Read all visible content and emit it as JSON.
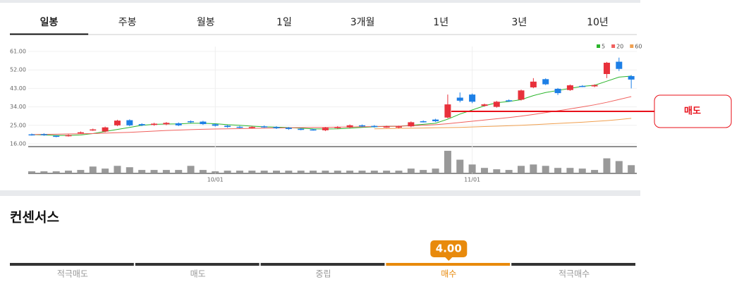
{
  "tabs": [
    "일봉",
    "주봉",
    "월봉",
    "1일",
    "3개월",
    "1년",
    "3년",
    "10년"
  ],
  "chart_data": {
    "type": "candlestick",
    "categories": [
      null,
      null,
      null,
      null,
      null,
      null,
      null,
      null,
      null,
      null,
      null,
      null,
      null,
      null,
      null,
      "10/01",
      null,
      null,
      null,
      null,
      null,
      null,
      null,
      null,
      null,
      null,
      null,
      null,
      null,
      null,
      null,
      null,
      null,
      null,
      null,
      null,
      "11/01",
      null,
      null,
      null,
      null,
      null,
      null,
      null,
      null,
      null,
      null,
      null,
      null,
      null
    ],
    "open": [
      20.6,
      20.7,
      19.9,
      19.9,
      21.3,
      22.7,
      22.0,
      25.0,
      27.5,
      25.6,
      25.2,
      25.5,
      26.0,
      27.0,
      26.8,
      25.5,
      24.8,
      24.3,
      23.8,
      24.5,
      24.2,
      23.8,
      23.3,
      23.0,
      22.6,
      23.8,
      24.0,
      25.0,
      24.7,
      24.2,
      24.0,
      24.5,
      27.0,
      27.8,
      28.8,
      38.5,
      40.0,
      34.5,
      34.0,
      37.2,
      37.5,
      43.5,
      47.5,
      42.8,
      42.2,
      44.2,
      44.0,
      50.0,
      56.0,
      49.0
    ],
    "high": [
      21.0,
      21.1,
      20.3,
      20.6,
      22.0,
      23.4,
      24.4,
      27.7,
      27.9,
      26.0,
      26.2,
      26.6,
      26.4,
      27.4,
      27.2,
      25.9,
      25.2,
      24.7,
      24.6,
      24.9,
      24.6,
      24.2,
      23.7,
      23.4,
      24.2,
      24.6,
      25.4,
      25.4,
      25.1,
      24.8,
      24.8,
      26.9,
      27.4,
      28.2,
      40.0,
      41.0,
      40.5,
      35.6,
      36.9,
      37.6,
      42.4,
      48.0,
      47.9,
      43.2,
      44.9,
      44.6,
      45.0,
      55.9,
      58.0,
      49.5
    ],
    "low": [
      20.0,
      19.9,
      19.2,
      19.5,
      20.9,
      22.3,
      21.6,
      24.6,
      24.6,
      24.6,
      24.8,
      25.1,
      24.6,
      26.1,
      25.2,
      24.4,
      23.8,
      23.6,
      23.4,
      23.8,
      23.2,
      22.8,
      22.6,
      22.4,
      22.2,
      23.4,
      23.6,
      24.2,
      23.9,
      23.8,
      23.6,
      24.1,
      26.4,
      26.6,
      28.4,
      36.2,
      35.8,
      34.1,
      33.6,
      36.4,
      37.1,
      43.1,
      44.6,
      39.8,
      41.8,
      43.6,
      43.6,
      48.0,
      51.5,
      43.0
    ],
    "close": [
      20.4,
      20.3,
      19.6,
      20.2,
      21.6,
      23.0,
      24.0,
      27.3,
      25.0,
      25.0,
      25.8,
      26.2,
      25.0,
      26.5,
      25.6,
      24.8,
      24.2,
      24.0,
      24.2,
      24.2,
      23.6,
      23.2,
      23.0,
      22.8,
      23.8,
      24.2,
      25.0,
      24.6,
      24.3,
      24.4,
      24.4,
      26.5,
      26.8,
      27.0,
      35.2,
      37.0,
      36.5,
      35.2,
      36.5,
      36.8,
      42.0,
      46.3,
      45.0,
      40.7,
      44.5,
      44.0,
      44.6,
      55.5,
      52.5,
      47.3
    ],
    "up_color": "#e8313b",
    "down_color": "#1d7fe6",
    "series": [
      {
        "name": "5",
        "color": "#2bb52b",
        "values": [
          20.5,
          20.3,
          20.1,
          20.1,
          20.3,
          21,
          22,
          23,
          24,
          25,
          25.5,
          25.6,
          25.7,
          26,
          26,
          25.8,
          25.3,
          25,
          24.6,
          24.3,
          24.1,
          23.9,
          23.6,
          23.3,
          23.2,
          23.3,
          23.6,
          24,
          24.3,
          24.5,
          24.5,
          25,
          25.5,
          26,
          28,
          30.5,
          32.5,
          34.5,
          36,
          36.6,
          37.5,
          39.5,
          41,
          42,
          43,
          44,
          44.5,
          46.5,
          48.5,
          49
        ]
      },
      {
        "name": "20",
        "color": "#f0605d",
        "values": [
          20.5,
          20.6,
          20.7,
          20.8,
          20.9,
          21.0,
          21.2,
          21.4,
          21.6,
          21.9,
          22.2,
          22.5,
          22.7,
          22.9,
          23.1,
          23.2,
          23.3,
          23.4,
          23.5,
          23.6,
          23.7,
          23.8,
          23.9,
          24.0,
          24.0,
          24.1,
          24.2,
          24.3,
          24.4,
          24.5,
          24.6,
          24.8,
          25.0,
          25.3,
          25.8,
          26.4,
          27.0,
          27.6,
          28.2,
          28.8,
          29.5,
          30.3,
          31.2,
          32.1,
          33.0,
          34.0,
          35.0,
          36.2,
          37.6,
          39.0
        ]
      },
      {
        "name": "60",
        "color": "#f0a050",
        "values": [
          null,
          null,
          null,
          null,
          null,
          null,
          null,
          null,
          null,
          null,
          null,
          null,
          null,
          null,
          null,
          null,
          null,
          null,
          null,
          null,
          null,
          null,
          null,
          null,
          null,
          null,
          null,
          null,
          23.3,
          23.4,
          23.5,
          23.6,
          23.7,
          23.8,
          23.9,
          24.0,
          24.2,
          24.4,
          24.6,
          24.8,
          25.0,
          25.3,
          25.6,
          25.9,
          26.2,
          26.5,
          26.9,
          27.3,
          27.8,
          28.4
        ]
      }
    ],
    "volume": [
      2,
      2,
      2,
      3,
      4,
      9,
      6,
      10,
      8,
      4,
      4,
      4,
      4,
      10,
      4,
      2,
      3,
      3,
      3,
      3,
      3,
      3,
      3,
      3,
      3,
      3,
      3,
      3,
      3,
      3,
      3,
      6,
      4,
      6,
      32,
      19,
      12,
      7,
      5,
      4,
      10,
      12,
      10,
      7,
      7,
      6,
      4,
      21,
      17,
      11
    ],
    "volume_color": "#999999",
    "volume_lim": [
      0,
      34
    ],
    "ylim": [
      16,
      61
    ],
    "yticks": [
      {
        "value": 16,
        "label": "16.00"
      },
      {
        "value": 25,
        "label": "25.00"
      },
      {
        "value": 34,
        "label": "34.00"
      },
      {
        "value": 43,
        "label": "43.00"
      },
      {
        "value": 52,
        "label": "52.00"
      },
      {
        "value": 61,
        "label": "61.00"
      }
    ],
    "grid": true,
    "legend": "top-right",
    "annotation": {
      "label": "매도",
      "value": 31.8,
      "color": "#e8101a"
    }
  },
  "consensus": {
    "title": "컨센서스",
    "score": "4.00",
    "levels": [
      "적극매도",
      "매도",
      "중립",
      "매수",
      "적극매수"
    ],
    "active": 3,
    "active_color": "#e88a0c"
  }
}
